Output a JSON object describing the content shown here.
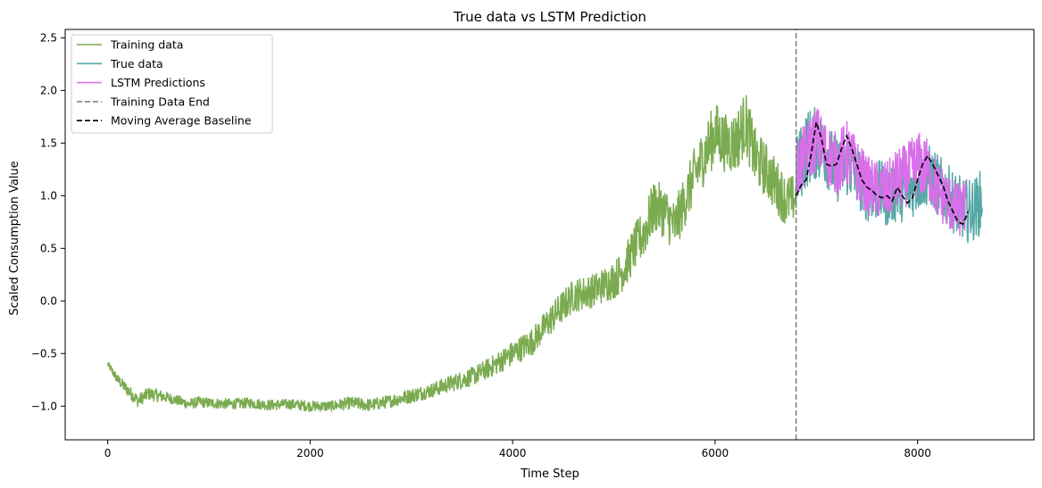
{
  "chart_data": {
    "type": "line",
    "title": "True data vs LSTM Prediction",
    "xlabel": "Time Step",
    "ylabel": "Scaled Consumption Value",
    "xlim": [
      -420,
      9150
    ],
    "ylim": [
      -1.32,
      2.58
    ],
    "xticks": [
      0,
      2000,
      4000,
      6000,
      8000
    ],
    "xtick_labels": [
      "0",
      "2000",
      "4000",
      "6000",
      "8000"
    ],
    "yticks": [
      -1.0,
      -0.5,
      0.0,
      0.5,
      1.0,
      1.5,
      2.0,
      2.5
    ],
    "ytick_labels": [
      "−1.0",
      "−0.5",
      "0.0",
      "0.5",
      "1.0",
      "1.5",
      "2.0",
      "2.5"
    ],
    "grid": false,
    "legend_position": "top-left",
    "training_data_end": 6800,
    "series": [
      {
        "name": "Training data",
        "color": "#7bab50",
        "style": "solid",
        "x": [
          0,
          100,
          200,
          300,
          400,
          500,
          600,
          700,
          800,
          900,
          1000,
          1200,
          1400,
          1600,
          1800,
          2000,
          2200,
          2400,
          2600,
          2800,
          3000,
          3200,
          3400,
          3600,
          3800,
          4000,
          4200,
          4400,
          4600,
          4800,
          5000,
          5100,
          5200,
          5300,
          5400,
          5500,
          5600,
          5700,
          5800,
          5900,
          6000,
          6100,
          6200,
          6300,
          6400,
          6500,
          6600,
          6700,
          6800
        ],
        "y": [
          -0.6,
          -0.75,
          -0.85,
          -0.95,
          -0.88,
          -0.9,
          -0.92,
          -0.95,
          -0.98,
          -0.96,
          -0.97,
          -0.98,
          -0.97,
          -0.99,
          -0.98,
          -1.0,
          -1.0,
          -0.97,
          -0.99,
          -0.95,
          -0.9,
          -0.85,
          -0.78,
          -0.72,
          -0.62,
          -0.5,
          -0.38,
          -0.15,
          0.05,
          0.1,
          0.2,
          0.3,
          0.5,
          0.65,
          0.9,
          0.85,
          0.7,
          0.95,
          1.2,
          1.4,
          1.6,
          1.5,
          1.5,
          1.7,
          1.35,
          1.25,
          1.1,
          0.95,
          0.98
        ],
        "noise": [
          0.03,
          0.05,
          0.06,
          0.06,
          0.06,
          0.06,
          0.05,
          0.05,
          0.05,
          0.05,
          0.05,
          0.05,
          0.05,
          0.05,
          0.05,
          0.05,
          0.05,
          0.06,
          0.06,
          0.06,
          0.07,
          0.07,
          0.08,
          0.09,
          0.1,
          0.12,
          0.13,
          0.15,
          0.16,
          0.16,
          0.18,
          0.2,
          0.22,
          0.24,
          0.25,
          0.25,
          0.25,
          0.25,
          0.27,
          0.28,
          0.3,
          0.28,
          0.3,
          0.3,
          0.28,
          0.26,
          0.26,
          0.24,
          0.22
        ]
      },
      {
        "name": "True data",
        "color": "#55a7a3",
        "style": "solid",
        "x": [
          6800,
          6900,
          7000,
          7100,
          7200,
          7300,
          7400,
          7500,
          7600,
          7700,
          7800,
          7900,
          8000,
          8100,
          8200,
          8300,
          8400,
          8500,
          8600,
          8640
        ],
        "y": [
          1.2,
          1.45,
          1.5,
          1.4,
          1.25,
          1.3,
          1.2,
          1.05,
          1.05,
          1.0,
          1.05,
          1.05,
          1.15,
          1.2,
          1.1,
          1.0,
          0.9,
          0.85,
          0.9,
          1.0
        ],
        "noise": [
          0.35,
          0.38,
          0.35,
          0.32,
          0.32,
          0.32,
          0.3,
          0.3,
          0.3,
          0.3,
          0.3,
          0.3,
          0.32,
          0.3,
          0.3,
          0.3,
          0.3,
          0.3,
          0.3,
          0.3
        ]
      },
      {
        "name": "LSTM Predictions",
        "color": "#d96fea",
        "style": "solid",
        "x": [
          6810,
          6900,
          7000,
          7100,
          7200,
          7300,
          7400,
          7500,
          7600,
          7700,
          7800,
          7900,
          8000,
          8100,
          8200,
          8300,
          8400,
          8480
        ],
        "y": [
          1.25,
          1.4,
          1.55,
          1.4,
          1.3,
          1.4,
          1.25,
          1.1,
          1.05,
          1.05,
          1.15,
          1.2,
          1.3,
          1.25,
          1.05,
          0.95,
          0.85,
          0.9
        ],
        "noise": [
          0.32,
          0.3,
          0.32,
          0.3,
          0.3,
          0.32,
          0.3,
          0.28,
          0.28,
          0.28,
          0.3,
          0.3,
          0.32,
          0.3,
          0.28,
          0.28,
          0.26,
          0.26
        ]
      },
      {
        "name": "Training Data End",
        "color": "#808080",
        "style": "dashed",
        "x": [
          6800,
          6800
        ],
        "y": [
          -1.32,
          2.58
        ]
      },
      {
        "name": "Moving Average Baseline",
        "color": "#000000",
        "style": "dashed",
        "x": [
          6800,
          6850,
          6900,
          6950,
          7000,
          7050,
          7100,
          7150,
          7200,
          7250,
          7300,
          7350,
          7400,
          7450,
          7500,
          7550,
          7600,
          7650,
          7700,
          7750,
          7800,
          7850,
          7900,
          7950,
          8000,
          8050,
          8100,
          8150,
          8200,
          8250,
          8300,
          8350,
          8400,
          8450,
          8500
        ],
        "y": [
          1.0,
          1.1,
          1.15,
          1.4,
          1.7,
          1.55,
          1.3,
          1.28,
          1.3,
          1.45,
          1.57,
          1.45,
          1.3,
          1.15,
          1.08,
          1.05,
          1.0,
          0.98,
          1.0,
          0.95,
          1.08,
          1.0,
          0.93,
          0.98,
          1.15,
          1.3,
          1.38,
          1.3,
          1.2,
          1.1,
          0.95,
          0.85,
          0.75,
          0.73,
          0.85
        ]
      }
    ]
  }
}
